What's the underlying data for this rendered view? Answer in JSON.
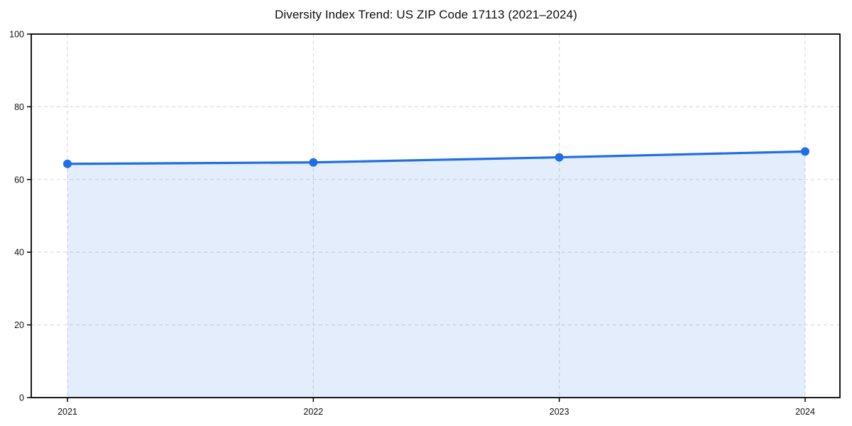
{
  "chart_data": {
    "type": "area",
    "title": "Diversity Index Trend: US ZIP Code 17113 (2021–2024)",
    "categories": [
      "2021",
      "2022",
      "2023",
      "2024"
    ],
    "values": [
      64.3,
      64.7,
      66.1,
      67.7
    ],
    "xlabel": "",
    "ylabel": "",
    "ylim": [
      0,
      100
    ],
    "yticks": [
      0,
      20,
      40,
      60,
      80,
      100
    ],
    "grid": true,
    "grid_style": "dashed",
    "legend_position": "none",
    "colors": {
      "line": "#1f6ee6",
      "marker": "#1f6ee6",
      "fill": "rgba(31,110,230,0.12)",
      "grid": "#dcdcdc",
      "spine": "#000000",
      "tick_text": "#111111",
      "background": "#ffffff"
    }
  }
}
